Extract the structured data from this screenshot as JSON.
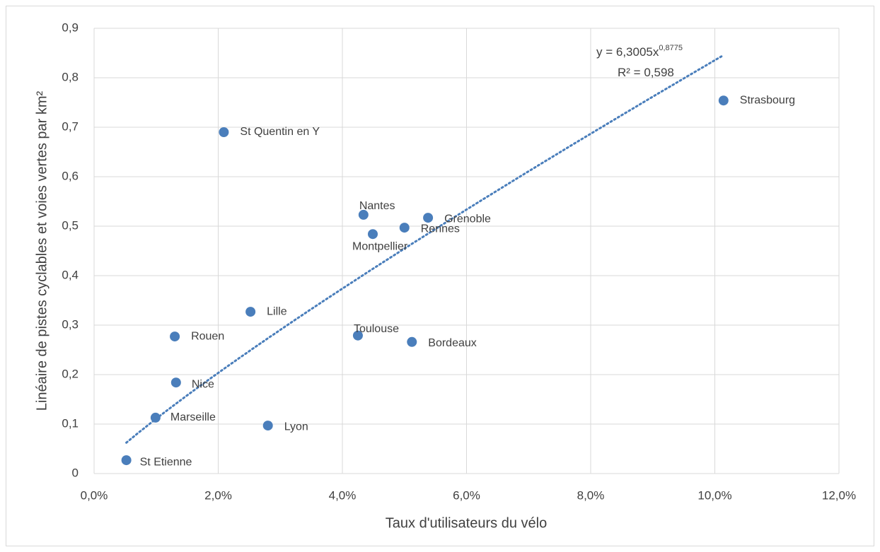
{
  "chart_data": {
    "type": "scatter",
    "x_label": "Taux d'utilisateurs du vélo",
    "y_label": "Linéaire de pistes cyclables et voies vertes par km²",
    "labels": [
      "St Etienne",
      "Marseille",
      "Nice",
      "Rouen",
      "Lille",
      "Lyon",
      "St Quentin en Y",
      "Toulouse",
      "Bordeaux",
      "Nantes",
      "Montpellier",
      "Rennes",
      "Grenoble",
      "Strasbourg"
    ],
    "x": [
      0.0052,
      0.0099,
      0.0132,
      0.013,
      0.0252,
      0.028,
      0.0209,
      0.0425,
      0.0512,
      0.0434,
      0.0449,
      0.05,
      0.0538,
      0.1014
    ],
    "values": [
      0.027,
      0.113,
      0.184,
      0.277,
      0.327,
      0.097,
      0.69,
      0.279,
      0.266,
      0.523,
      0.484,
      0.497,
      0.517,
      0.754
    ],
    "color": "#4a7ebb",
    "xlim": [
      0,
      0.12
    ],
    "xticks": [
      {
        "value": 0,
        "label": "0,0%"
      },
      {
        "value": 0.02,
        "label": "2,0%"
      },
      {
        "value": 0.04,
        "label": "4,0%"
      },
      {
        "value": 0.06,
        "label": "6,0%"
      },
      {
        "value": 0.08,
        "label": "8,0%"
      },
      {
        "value": 0.1,
        "label": "10,0%"
      },
      {
        "value": 0.12,
        "label": "12,0%"
      }
    ],
    "ylim": [
      0,
      0.9
    ],
    "yticks": [
      0,
      {
        "value": 0.1,
        "label": "0,1"
      },
      {
        "value": 0.2,
        "label": "0,2"
      },
      {
        "value": 0.3,
        "label": "0,3"
      },
      {
        "value": 0.4,
        "label": "0,4"
      },
      {
        "value": 0.5,
        "label": "0,5"
      },
      {
        "value": 0.6,
        "label": "0,6"
      },
      {
        "value": 0.7,
        "label": "0,7"
      },
      {
        "value": 0.8,
        "label": "0,8"
      },
      {
        "value": 0.9,
        "label": "0,9"
      }
    ],
    "grid": true,
    "trendline": {
      "lhs": "y = ",
      "coefficient": {
        "value": 6.3005,
        "label": "6,3005"
      },
      "variable": "x",
      "exponent": {
        "value": 0.8775,
        "label": "0,8775"
      },
      "r2_lhs": "R² = ",
      "r2": {
        "value": 0.598,
        "label": "0,598"
      }
    }
  }
}
